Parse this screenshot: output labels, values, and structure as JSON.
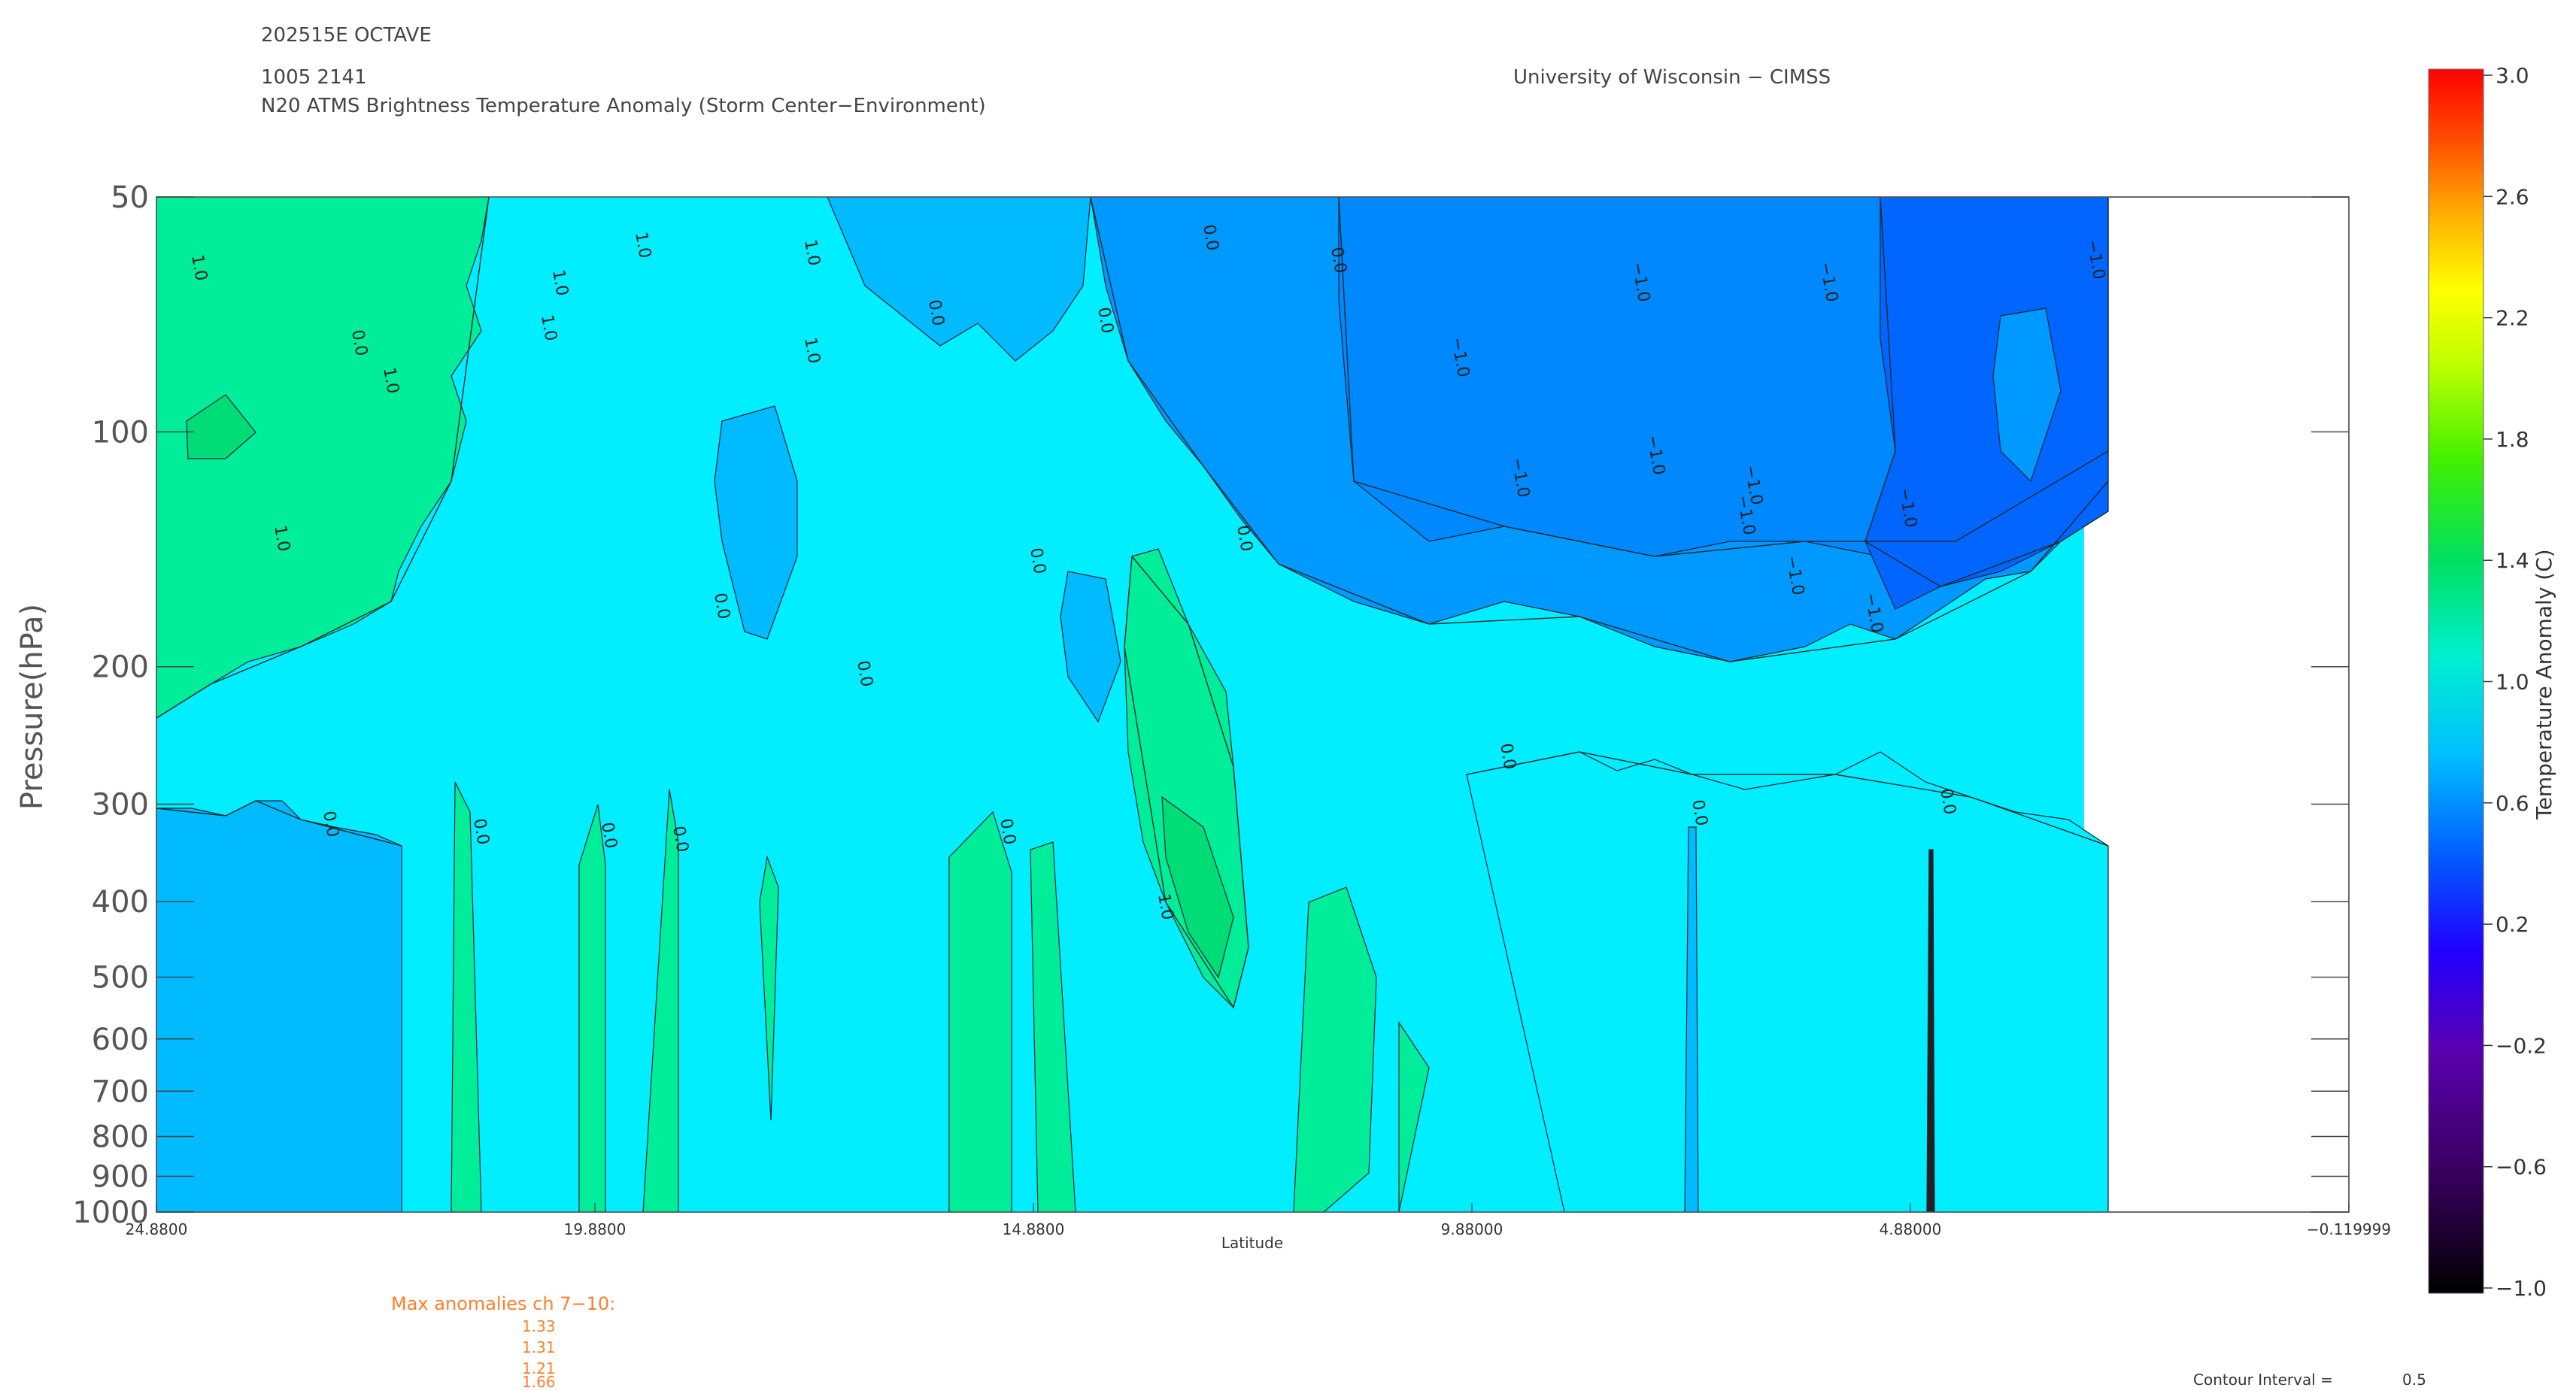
{
  "header": {
    "storm": "202515E OCTAVE",
    "datetime": "1005 2141",
    "product": "N20 ATMS Brightness Temperature Anomaly (Storm Center−Environment)",
    "institution": "University of Wisconsin − CIMSS"
  },
  "max_anomalies": {
    "title": "Max anomalies ch 7−10:",
    "values": [
      "1.33",
      "1.31",
      "1.21",
      "1.66"
    ]
  },
  "contour_interval": {
    "label": "Contour Interval =",
    "value": "0.5"
  },
  "colors": {
    "band_low": "#00bbff",
    "band_mid": "#00eeff",
    "band_green": "#00ee99",
    "band_green_dark": "#00dd77",
    "band_blue": "#0099ff",
    "band_blue2": "#0088ff",
    "band_blue3": "#0077ff",
    "band_blue4": "#0066ff",
    "band_blue5": "#0055ff",
    "orange_text": "#ff7f2a"
  },
  "chart_data": {
    "type": "heatmap",
    "title": "N20 ATMS Brightness Temperature Anomaly (Storm Center−Environment)",
    "xlabel": "Latitude",
    "ylabel": "Pressure(hPa)",
    "x_ticks": [
      "24.8800",
      "19.8800",
      "14.8800",
      "9.88000",
      "4.88000",
      "−0.119999"
    ],
    "x_tick_values": [
      24.88,
      19.88,
      14.88,
      9.88,
      4.88,
      -0.119999
    ],
    "xlim": [
      24.88,
      -0.119999
    ],
    "y_ticks": [
      "50",
      "100",
      "200",
      "300",
      "400",
      "500",
      "600",
      "700",
      "800",
      "900",
      "1000"
    ],
    "y_tick_values": [
      50,
      100,
      200,
      300,
      400,
      500,
      600,
      700,
      800,
      900,
      1000
    ],
    "ylim": [
      1000,
      50
    ],
    "y_scale": "log",
    "colorbar": {
      "label": "Temperature Anomaly (C)",
      "range": [
        -1.0,
        3.0
      ],
      "tick_labels": [
        "3.0",
        "2.6",
        "2.2",
        "1.8",
        "1.4",
        "1.0",
        "0.6",
        "0.2",
        "−0.2",
        "−0.6",
        "−1.0"
      ],
      "tick_values": [
        3.0,
        2.6,
        2.2,
        1.8,
        1.4,
        1.0,
        0.6,
        0.2,
        -0.2,
        -0.6,
        -1.0
      ]
    },
    "contour_interval": 0.5,
    "contour_labels": [
      "1.0",
      "0.0",
      "−1.0"
    ],
    "data_extent_latitude": [
      24.88,
      2.9
    ]
  }
}
